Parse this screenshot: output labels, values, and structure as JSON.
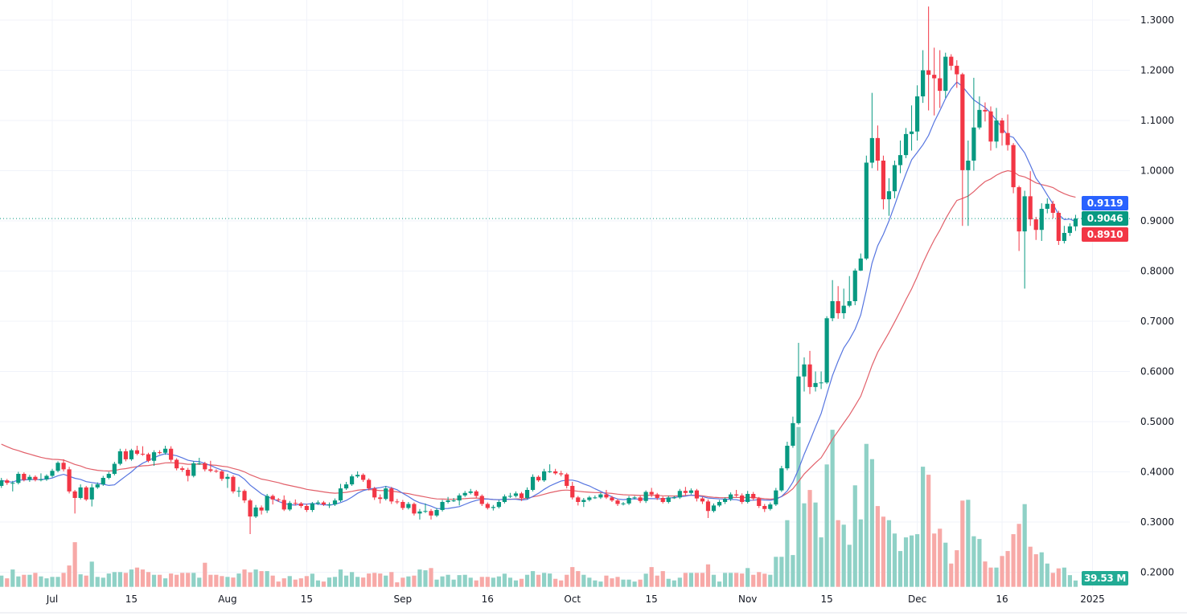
{
  "chart_data": {
    "type": "candlestick",
    "title": "",
    "interval": "1D",
    "y_axis": {
      "range": [
        0.2,
        1.33
      ],
      "ticks": [
        0.2,
        0.3,
        0.4,
        0.5,
        0.6,
        0.7,
        0.8,
        0.9,
        1.0,
        1.1,
        1.2,
        1.3
      ],
      "tick_labels": [
        "0.2000",
        "0.3000",
        "0.4000",
        "0.5000",
        "0.6000",
        "0.7000",
        "0.8000",
        "0.9000",
        "1.0000",
        "1.1000",
        "1.2000",
        "1.3000"
      ],
      "position": "right"
    },
    "x_axis": {
      "ticks": [
        {
          "label": "Jul",
          "date": "2024-07-01"
        },
        {
          "label": "15",
          "date": "2024-07-15"
        },
        {
          "label": "Aug",
          "date": "2024-08-01"
        },
        {
          "label": "15",
          "date": "2024-08-15"
        },
        {
          "label": "Sep",
          "date": "2024-09-01"
        },
        {
          "label": "16",
          "date": "2024-09-16"
        },
        {
          "label": "Oct",
          "date": "2024-10-01"
        },
        {
          "label": "15",
          "date": "2024-10-15"
        },
        {
          "label": "Nov",
          "date": "2024-11-01"
        },
        {
          "label": "15",
          "date": "2024-11-15"
        },
        {
          "label": "Dec",
          "date": "2024-12-01"
        },
        {
          "label": "16",
          "date": "2024-12-16"
        },
        {
          "label": "2025",
          "date": "2025-01-01"
        }
      ]
    },
    "grid": true,
    "colors": {
      "up": "#089981",
      "down": "#f23645",
      "volume_up": "#8fd1c6",
      "volume_down": "#f7a9a7",
      "ma_fast": "#5675e0",
      "ma_slow": "#e2606a",
      "ma_fast_label": "#2962ff",
      "ma_slow_label": "#f23645"
    },
    "dates": [
      "2024-06-22",
      "2024-06-23",
      "2024-06-24",
      "2024-06-25",
      "2024-06-26",
      "2024-06-27",
      "2024-06-28",
      "2024-06-29",
      "2024-06-30",
      "2024-07-01",
      "2024-07-02",
      "2024-07-03",
      "2024-07-04",
      "2024-07-05",
      "2024-07-06",
      "2024-07-07",
      "2024-07-08",
      "2024-07-09",
      "2024-07-10",
      "2024-07-11",
      "2024-07-12",
      "2024-07-13",
      "2024-07-14",
      "2024-07-15",
      "2024-07-16",
      "2024-07-17",
      "2024-07-18",
      "2024-07-19",
      "2024-07-20",
      "2024-07-21",
      "2024-07-22",
      "2024-07-23",
      "2024-07-24",
      "2024-07-25",
      "2024-07-26",
      "2024-07-27",
      "2024-07-28",
      "2024-07-29",
      "2024-07-30",
      "2024-07-31",
      "2024-08-01",
      "2024-08-02",
      "2024-08-03",
      "2024-08-04",
      "2024-08-05",
      "2024-08-06",
      "2024-08-07",
      "2024-08-08",
      "2024-08-09",
      "2024-08-10",
      "2024-08-11",
      "2024-08-12",
      "2024-08-13",
      "2024-08-14",
      "2024-08-15",
      "2024-08-16",
      "2024-08-17",
      "2024-08-18",
      "2024-08-19",
      "2024-08-20",
      "2024-08-21",
      "2024-08-22",
      "2024-08-23",
      "2024-08-24",
      "2024-08-25",
      "2024-08-26",
      "2024-08-27",
      "2024-08-28",
      "2024-08-29",
      "2024-08-30",
      "2024-08-31",
      "2024-09-01",
      "2024-09-02",
      "2024-09-03",
      "2024-09-04",
      "2024-09-05",
      "2024-09-06",
      "2024-09-07",
      "2024-09-08",
      "2024-09-09",
      "2024-09-10",
      "2024-09-11",
      "2024-09-12",
      "2024-09-13",
      "2024-09-14",
      "2024-09-15",
      "2024-09-16",
      "2024-09-17",
      "2024-09-18",
      "2024-09-19",
      "2024-09-20",
      "2024-09-21",
      "2024-09-22",
      "2024-09-23",
      "2024-09-24",
      "2024-09-25",
      "2024-09-26",
      "2024-09-27",
      "2024-09-28",
      "2024-09-29",
      "2024-09-30",
      "2024-10-01",
      "2024-10-02",
      "2024-10-03",
      "2024-10-04",
      "2024-10-05",
      "2024-10-06",
      "2024-10-07",
      "2024-10-08",
      "2024-10-09",
      "2024-10-10",
      "2024-10-11",
      "2024-10-12",
      "2024-10-13",
      "2024-10-14",
      "2024-10-15",
      "2024-10-16",
      "2024-10-17",
      "2024-10-18",
      "2024-10-19",
      "2024-10-20",
      "2024-10-21",
      "2024-10-22",
      "2024-10-23",
      "2024-10-24",
      "2024-10-25",
      "2024-10-26",
      "2024-10-27",
      "2024-10-28",
      "2024-10-29",
      "2024-10-30",
      "2024-10-31",
      "2024-11-01",
      "2024-11-02",
      "2024-11-03",
      "2024-11-04",
      "2024-11-05",
      "2024-11-06",
      "2024-11-07",
      "2024-11-08",
      "2024-11-09",
      "2024-11-10",
      "2024-11-11",
      "2024-11-12",
      "2024-11-13",
      "2024-11-14",
      "2024-11-15",
      "2024-11-16",
      "2024-11-17",
      "2024-11-18",
      "2024-11-19",
      "2024-11-20",
      "2024-11-21",
      "2024-11-22",
      "2024-11-23",
      "2024-11-24",
      "2024-11-25",
      "2024-11-26",
      "2024-11-27",
      "2024-11-28",
      "2024-11-29",
      "2024-11-30",
      "2024-12-01",
      "2024-12-02",
      "2024-12-03",
      "2024-12-04",
      "2024-12-05",
      "2024-12-06",
      "2024-12-07",
      "2024-12-08",
      "2024-12-09",
      "2024-12-10",
      "2024-12-11",
      "2024-12-12",
      "2024-12-13",
      "2024-12-14",
      "2024-12-15",
      "2024-12-16",
      "2024-12-17",
      "2024-12-18",
      "2024-12-19",
      "2024-12-20",
      "2024-12-21",
      "2024-12-22",
      "2024-12-23",
      "2024-12-24",
      "2024-12-25",
      "2024-12-26",
      "2024-12-27",
      "2024-12-28",
      "2024-12-29"
    ],
    "open": [
      0.372,
      0.383,
      0.378,
      0.378,
      0.396,
      0.384,
      0.39,
      0.384,
      0.385,
      0.392,
      0.402,
      0.418,
      0.405,
      0.361,
      0.348,
      0.369,
      0.345,
      0.369,
      0.375,
      0.388,
      0.396,
      0.416,
      0.441,
      0.425,
      0.443,
      0.436,
      0.435,
      0.422,
      0.439,
      0.438,
      0.446,
      0.424,
      0.407,
      0.404,
      0.392,
      0.417,
      0.417,
      0.405,
      0.402,
      0.401,
      0.386,
      0.39,
      0.361,
      0.362,
      0.343,
      0.311,
      0.329,
      0.323,
      0.352,
      0.345,
      0.344,
      0.325,
      0.338,
      0.337,
      0.332,
      0.324,
      0.337,
      0.339,
      0.335,
      0.335,
      0.343,
      0.367,
      0.375,
      0.391,
      0.394,
      0.384,
      0.367,
      0.349,
      0.346,
      0.367,
      0.341,
      0.34,
      0.328,
      0.336,
      0.317,
      0.321,
      0.322,
      0.313,
      0.324,
      0.34,
      0.343,
      0.343,
      0.353,
      0.358,
      0.361,
      0.352,
      0.336,
      0.328,
      0.33,
      0.34,
      0.351,
      0.352,
      0.357,
      0.348,
      0.364,
      0.39,
      0.383,
      0.401,
      0.401,
      0.397,
      0.395,
      0.372,
      0.349,
      0.34,
      0.344,
      0.349,
      0.349,
      0.355,
      0.349,
      0.343,
      0.336,
      0.337,
      0.348,
      0.349,
      0.342,
      0.36,
      0.355,
      0.348,
      0.34,
      0.349,
      0.349,
      0.362,
      0.358,
      0.363,
      0.347,
      0.341,
      0.322,
      0.333,
      0.34,
      0.346,
      0.355,
      0.353,
      0.34,
      0.356,
      0.347,
      0.332,
      0.326,
      0.335,
      0.363,
      0.407,
      0.452,
      0.497,
      0.59,
      0.614,
      0.569,
      0.577,
      0.578,
      0.706,
      0.74,
      0.716,
      0.731,
      0.74,
      0.801,
      0.825,
      1.016,
      1.065,
      1.02,
      0.943,
      0.959,
      1.011,
      1.031,
      1.073,
      1.078,
      1.148,
      1.2,
      1.191,
      1.184,
      1.159,
      1.227,
      1.209,
      1.192,
      1.001,
      1.02,
      1.086,
      1.121,
      1.118,
      1.058,
      1.1,
      1.075,
      1.051,
      0.967,
      0.879,
      0.949,
      0.903,
      0.882,
      0.924,
      0.934,
      0.916,
      0.86,
      0.876,
      0.889
    ],
    "high": [
      0.388,
      0.386,
      0.382,
      0.4,
      0.399,
      0.394,
      0.393,
      0.397,
      0.395,
      0.406,
      0.421,
      0.425,
      0.41,
      0.364,
      0.375,
      0.372,
      0.376,
      0.379,
      0.392,
      0.4,
      0.42,
      0.446,
      0.446,
      0.446,
      0.452,
      0.451,
      0.438,
      0.443,
      0.443,
      0.452,
      0.451,
      0.427,
      0.411,
      0.408,
      0.421,
      0.428,
      0.42,
      0.422,
      0.405,
      0.404,
      0.396,
      0.393,
      0.37,
      0.365,
      0.346,
      0.334,
      0.333,
      0.356,
      0.355,
      0.348,
      0.353,
      0.342,
      0.345,
      0.34,
      0.336,
      0.34,
      0.343,
      0.342,
      0.339,
      0.347,
      0.376,
      0.38,
      0.395,
      0.401,
      0.397,
      0.387,
      0.37,
      0.355,
      0.372,
      0.37,
      0.346,
      0.344,
      0.34,
      0.339,
      0.326,
      0.337,
      0.326,
      0.328,
      0.344,
      0.35,
      0.348,
      0.357,
      0.362,
      0.366,
      0.364,
      0.355,
      0.339,
      0.334,
      0.344,
      0.355,
      0.358,
      0.361,
      0.36,
      0.369,
      0.395,
      0.393,
      0.406,
      0.415,
      0.406,
      0.402,
      0.398,
      0.38,
      0.352,
      0.348,
      0.352,
      0.353,
      0.358,
      0.364,
      0.352,
      0.346,
      0.34,
      0.352,
      0.352,
      0.352,
      0.363,
      0.368,
      0.358,
      0.351,
      0.352,
      0.352,
      0.366,
      0.37,
      0.367,
      0.366,
      0.35,
      0.345,
      0.337,
      0.344,
      0.349,
      0.359,
      0.364,
      0.357,
      0.362,
      0.36,
      0.35,
      0.336,
      0.339,
      0.368,
      0.412,
      0.46,
      0.51,
      0.657,
      0.628,
      0.641,
      0.6,
      0.6,
      0.71,
      0.782,
      0.77,
      0.765,
      0.79,
      0.805,
      0.835,
      1.03,
      1.155,
      1.09,
      1.03,
      0.985,
      1.02,
      1.06,
      1.085,
      1.13,
      1.17,
      1.24,
      1.327,
      1.245,
      1.24,
      1.235,
      1.232,
      1.22,
      1.195,
      1.06,
      1.185,
      1.148,
      1.136,
      1.128,
      1.125,
      1.105,
      1.112,
      1.055,
      0.97,
      0.96,
      0.999,
      0.908,
      0.935,
      0.945,
      0.94,
      0.92,
      0.89,
      0.895,
      0.912
    ],
    "low": [
      0.368,
      0.374,
      0.361,
      0.375,
      0.381,
      0.38,
      0.381,
      0.381,
      0.382,
      0.389,
      0.399,
      0.401,
      0.357,
      0.317,
      0.345,
      0.342,
      0.331,
      0.366,
      0.372,
      0.385,
      0.393,
      0.413,
      0.421,
      0.422,
      0.433,
      0.432,
      0.419,
      0.412,
      0.435,
      0.434,
      0.42,
      0.403,
      0.4,
      0.381,
      0.389,
      0.414,
      0.401,
      0.399,
      0.398,
      0.382,
      0.368,
      0.357,
      0.35,
      0.338,
      0.276,
      0.308,
      0.315,
      0.318,
      0.335,
      0.34,
      0.322,
      0.322,
      0.333,
      0.328,
      0.32,
      0.32,
      0.334,
      0.332,
      0.328,
      0.332,
      0.34,
      0.364,
      0.372,
      0.388,
      0.38,
      0.363,
      0.344,
      0.337,
      0.343,
      0.336,
      0.336,
      0.324,
      0.325,
      0.313,
      0.305,
      0.318,
      0.305,
      0.31,
      0.321,
      0.337,
      0.34,
      0.333,
      0.35,
      0.355,
      0.348,
      0.332,
      0.325,
      0.323,
      0.327,
      0.337,
      0.348,
      0.349,
      0.342,
      0.345,
      0.361,
      0.38,
      0.38,
      0.398,
      0.394,
      0.391,
      0.367,
      0.345,
      0.333,
      0.33,
      0.341,
      0.346,
      0.346,
      0.346,
      0.34,
      0.332,
      0.333,
      0.334,
      0.345,
      0.338,
      0.338,
      0.35,
      0.344,
      0.337,
      0.337,
      0.346,
      0.346,
      0.353,
      0.355,
      0.341,
      0.336,
      0.308,
      0.319,
      0.33,
      0.336,
      0.342,
      0.35,
      0.336,
      0.337,
      0.343,
      0.328,
      0.32,
      0.323,
      0.332,
      0.36,
      0.403,
      0.448,
      0.494,
      0.56,
      0.555,
      0.56,
      0.565,
      0.575,
      0.7,
      0.705,
      0.705,
      0.728,
      0.732,
      0.8,
      0.822,
      1.005,
      1.0,
      0.923,
      0.91,
      0.945,
      0.995,
      1.025,
      1.04,
      1.06,
      1.135,
      1.12,
      1.11,
      1.125,
      1.145,
      1.2,
      1.165,
      0.89,
      0.89,
      1.0,
      1.082,
      1.098,
      1.04,
      1.045,
      1.05,
      1.04,
      0.955,
      0.84,
      0.765,
      0.89,
      0.862,
      0.86,
      0.915,
      0.905,
      0.852,
      0.855,
      0.87,
      0.88
    ],
    "close": [
      0.383,
      0.378,
      0.378,
      0.396,
      0.384,
      0.39,
      0.384,
      0.385,
      0.392,
      0.402,
      0.418,
      0.405,
      0.361,
      0.348,
      0.369,
      0.345,
      0.369,
      0.375,
      0.388,
      0.396,
      0.416,
      0.441,
      0.425,
      0.443,
      0.436,
      0.435,
      0.422,
      0.439,
      0.438,
      0.446,
      0.424,
      0.407,
      0.404,
      0.392,
      0.417,
      0.417,
      0.405,
      0.402,
      0.401,
      0.386,
      0.39,
      0.361,
      0.362,
      0.343,
      0.311,
      0.329,
      0.323,
      0.352,
      0.345,
      0.344,
      0.325,
      0.338,
      0.337,
      0.332,
      0.324,
      0.337,
      0.339,
      0.335,
      0.335,
      0.343,
      0.367,
      0.375,
      0.391,
      0.394,
      0.384,
      0.367,
      0.349,
      0.346,
      0.367,
      0.341,
      0.34,
      0.328,
      0.336,
      0.317,
      0.321,
      0.322,
      0.313,
      0.324,
      0.34,
      0.343,
      0.343,
      0.353,
      0.358,
      0.361,
      0.352,
      0.336,
      0.328,
      0.33,
      0.34,
      0.351,
      0.352,
      0.357,
      0.348,
      0.364,
      0.39,
      0.383,
      0.401,
      0.401,
      0.397,
      0.395,
      0.372,
      0.349,
      0.34,
      0.344,
      0.349,
      0.349,
      0.355,
      0.349,
      0.343,
      0.336,
      0.337,
      0.348,
      0.349,
      0.342,
      0.36,
      0.355,
      0.348,
      0.34,
      0.349,
      0.349,
      0.362,
      0.358,
      0.363,
      0.347,
      0.341,
      0.322,
      0.333,
      0.34,
      0.346,
      0.355,
      0.353,
      0.34,
      0.356,
      0.347,
      0.332,
      0.326,
      0.335,
      0.363,
      0.407,
      0.452,
      0.497,
      0.59,
      0.614,
      0.569,
      0.577,
      0.578,
      0.706,
      0.74,
      0.716,
      0.731,
      0.74,
      0.801,
      0.825,
      1.016,
      1.065,
      1.02,
      0.943,
      0.959,
      1.011,
      1.031,
      1.073,
      1.078,
      1.148,
      1.2,
      1.191,
      1.184,
      1.159,
      1.227,
      1.209,
      1.192,
      1.001,
      1.02,
      1.086,
      1.121,
      1.118,
      1.058,
      1.1,
      1.075,
      1.051,
      0.967,
      0.879,
      0.949,
      0.903,
      0.882,
      0.924,
      0.934,
      0.916,
      0.86,
      0.876,
      0.889,
      0.9046
    ],
    "volume_millions": [
      70,
      53,
      108,
      65,
      75,
      75,
      87,
      65,
      53,
      62,
      62,
      87,
      133,
      278,
      78,
      70,
      157,
      62,
      57,
      83,
      92,
      92,
      87,
      108,
      120,
      108,
      92,
      75,
      75,
      53,
      83,
      75,
      87,
      87,
      87,
      57,
      150,
      75,
      75,
      67,
      62,
      58,
      83,
      108,
      90,
      108,
      98,
      98,
      70,
      33,
      53,
      67,
      45,
      53,
      67,
      82,
      40,
      33,
      58,
      62,
      108,
      70,
      92,
      62,
      58,
      83,
      87,
      83,
      70,
      92,
      28,
      57,
      65,
      70,
      108,
      103,
      117,
      45,
      65,
      75,
      45,
      73,
      75,
      57,
      40,
      62,
      62,
      57,
      65,
      82,
      57,
      40,
      50,
      75,
      98,
      75,
      87,
      83,
      50,
      40,
      75,
      123,
      98,
      75,
      57,
      40,
      33,
      70,
      53,
      62,
      45,
      45,
      33,
      45,
      82,
      123,
      70,
      98,
      50,
      40,
      57,
      87,
      87,
      87,
      87,
      140,
      75,
      33,
      87,
      87,
      87,
      83,
      117,
      75,
      92,
      82,
      75,
      187,
      187,
      415,
      198,
      995,
      520,
      603,
      525,
      308,
      762,
      978,
      415,
      387,
      262,
      632,
      420,
      890,
      795,
      503,
      437,
      415,
      332,
      223,
      308,
      320,
      328,
      748,
      698,
      332,
      362,
      275,
      145,
      228,
      537,
      542,
      315,
      298,
      158,
      120,
      120,
      192,
      223,
      328,
      392,
      515,
      250,
      203,
      215,
      145,
      87,
      115,
      120,
      73,
      39.53
    ],
    "labels": {
      "ma_fast_value": "0.9119",
      "last_price": "0.9046",
      "ma_slow_value": "0.8910",
      "last_volume": "39.53 M"
    }
  }
}
